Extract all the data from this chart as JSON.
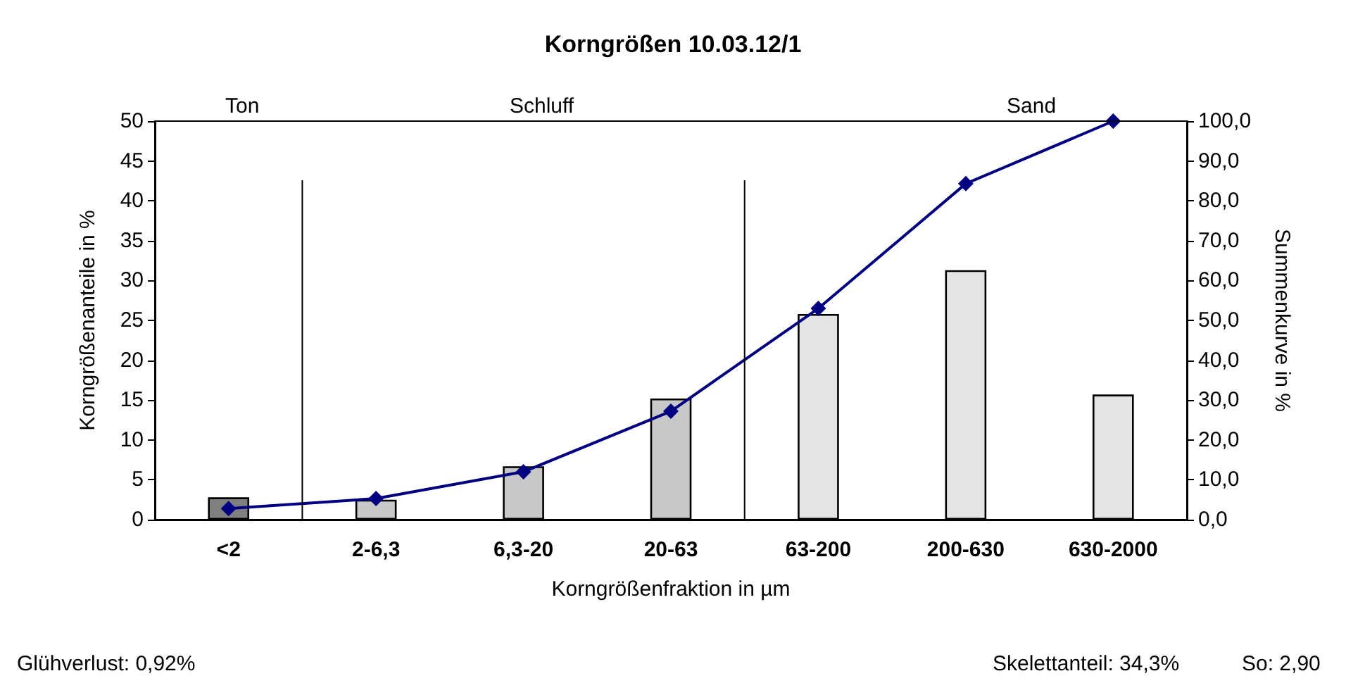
{
  "chart_data": {
    "type": "bar",
    "title": "Korngrößen 10.03.12/1",
    "xlabel": "Korngrößenfraktion in µm",
    "ylabel": "Korngrößenanteile in %",
    "y2label": "Summenkurve in %",
    "categories": [
      "<2",
      "2-6,3",
      "6,3-20",
      "20-63",
      "63-200",
      "200-630",
      "630-2000"
    ],
    "series": [
      {
        "values": [
          2.8,
          2.5,
          6.7,
          15.2,
          25.8,
          31.3,
          15.7
        ],
        "colors": [
          "#808080",
          "#c8c8c8",
          "#c8c8c8",
          "#c8c8c8",
          "#e4e4e4",
          "#e4e4e4",
          "#e4e4e4"
        ]
      },
      {
        "type": "line",
        "axis": "y2",
        "color": "#000080",
        "values": [
          2.8,
          5.3,
          12.0,
          27.2,
          53.0,
          84.3,
          100.0
        ]
      }
    ],
    "ylim": [
      0,
      50
    ],
    "yticks": [
      0,
      5,
      10,
      15,
      20,
      25,
      30,
      35,
      40,
      45,
      50
    ],
    "y2lim": [
      0,
      100
    ],
    "y2ticks": [
      {
        "value": 0,
        "label": "0,0"
      },
      {
        "value": 10,
        "label": "10,0"
      },
      {
        "value": 20,
        "label": "20,0"
      },
      {
        "value": 30,
        "label": "30,0"
      },
      {
        "value": 40,
        "label": "40,0"
      },
      {
        "value": 50,
        "label": "50,0"
      },
      {
        "value": 60,
        "label": "60,0"
      },
      {
        "value": 70,
        "label": "70,0"
      },
      {
        "value": 80,
        "label": "80,0"
      },
      {
        "value": 90,
        "label": "90,0"
      },
      {
        "value": 100,
        "label": "100,0"
      }
    ],
    "annotations": [
      "Ton",
      "Schluff",
      "Sand",
      "Glühverlust: 0,92%",
      "Skelettanteil: 34,3%",
      "So: 2,90"
    ],
    "grid": false,
    "marker": "diamond",
    "line_style": "solid"
  }
}
